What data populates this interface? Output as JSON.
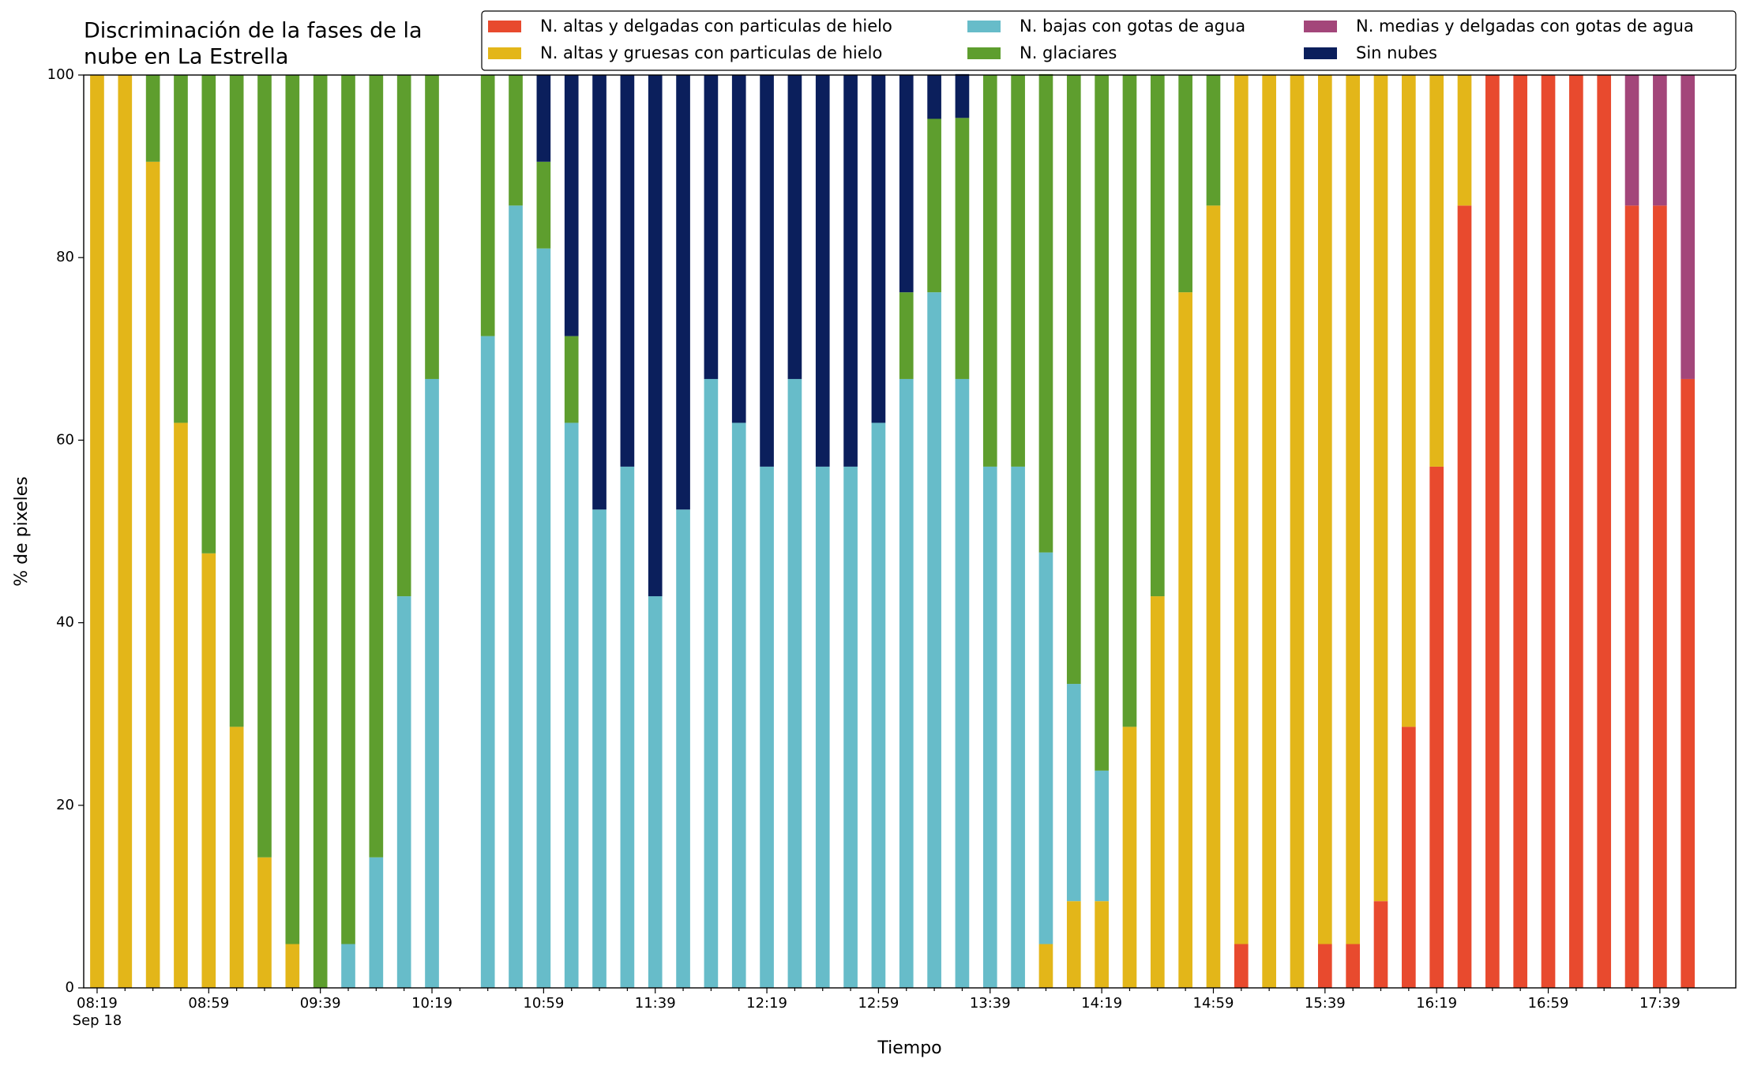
{
  "chart_data": {
    "type": "stacked_bar",
    "title": [
      "Discriminación de la fases de la",
      "nube en La Estrella"
    ],
    "xlabel": "Tiempo",
    "ylabel": "% de pixeles",
    "date_label": "Sep 18",
    "categories": [
      "08:19",
      null,
      null,
      null,
      "08:59",
      null,
      null,
      null,
      "09:39",
      null,
      null,
      null,
      "10:19",
      null,
      null,
      null,
      "10:59",
      null,
      null,
      null,
      "11:39",
      null,
      null,
      null,
      "12:19",
      null,
      null,
      null,
      "12:59",
      null,
      null,
      null,
      "13:39",
      null,
      null,
      null,
      "14:19",
      null,
      null,
      null,
      "14:59",
      null,
      null,
      null,
      "15:39",
      null,
      null,
      null,
      "16:19",
      null,
      null,
      null,
      "16:59",
      null,
      null,
      null,
      "17:39",
      null
    ],
    "series": [
      {
        "name": "N. altas y delgadas con particulas de hielo",
        "color": "#e84a2e",
        "values": [
          0,
          0,
          0,
          0,
          0,
          0,
          0,
          0,
          0,
          0,
          0,
          0,
          0,
          null,
          0,
          0,
          0,
          0,
          0,
          0,
          0,
          0,
          0,
          0,
          0,
          0,
          0,
          0,
          0,
          0,
          0,
          0,
          0,
          0,
          0,
          0,
          0,
          0,
          0,
          0,
          0,
          4.8,
          0,
          0,
          4.8,
          4.8,
          9.5,
          28.6,
          57.1,
          85.7,
          100,
          100,
          100,
          100,
          100,
          85.7,
          85.7,
          66.7
        ]
      },
      {
        "name": "N. altas y gruesas con particulas de hielo",
        "color": "#e3b619",
        "values": [
          100,
          100,
          90.5,
          61.9,
          47.6,
          28.6,
          14.3,
          4.8,
          0,
          0,
          0,
          0,
          0,
          null,
          0,
          0,
          0,
          0,
          0,
          0,
          0,
          0,
          0,
          0,
          0,
          0,
          0,
          0,
          0,
          0,
          0,
          0,
          0,
          0,
          4.8,
          9.5,
          9.5,
          28.6,
          42.9,
          76.2,
          85.7,
          95.2,
          100,
          100,
          95.2,
          95.2,
          90.5,
          71.4,
          42.9,
          14.3,
          0,
          0,
          0,
          0,
          0,
          0,
          0,
          0
        ]
      },
      {
        "name": "N. bajas con gotas de agua",
        "color": "#67bcc9",
        "values": [
          0,
          0,
          0,
          0,
          0,
          0,
          0,
          0,
          0,
          4.8,
          14.3,
          42.9,
          66.7,
          null,
          71.4,
          85.7,
          81,
          61.9,
          52.4,
          57.1,
          42.9,
          52.4,
          66.7,
          61.9,
          57.1,
          66.7,
          57.1,
          57.1,
          61.9,
          66.7,
          76.2,
          66.7,
          57.1,
          57.1,
          42.9,
          23.8,
          14.3,
          0,
          0,
          0,
          0,
          0,
          0,
          0,
          0,
          0,
          0,
          0,
          0,
          0,
          0,
          0,
          0,
          0,
          0,
          0,
          0,
          0
        ]
      },
      {
        "name": "N. glaciares",
        "color": "#5e9e2e",
        "values": [
          0,
          0,
          9.5,
          38.1,
          52.4,
          71.4,
          85.7,
          95.2,
          100,
          95.2,
          85.7,
          57.1,
          33.3,
          null,
          28.6,
          14.3,
          9.5,
          9.5,
          0,
          0,
          0,
          0,
          0,
          0,
          0,
          0,
          0,
          0,
          0,
          9.5,
          19,
          28.6,
          42.9,
          42.9,
          52.4,
          66.7,
          76.2,
          71.4,
          57.1,
          23.8,
          14.3,
          0,
          0,
          0,
          0,
          0,
          0,
          0,
          0,
          0,
          0,
          0,
          0,
          0,
          0,
          0,
          0,
          0
        ]
      },
      {
        "name": "N. medias y delgadas con gotas de agua",
        "color": "#a3467a",
        "values": [
          0,
          0,
          0,
          0,
          0,
          0,
          0,
          0,
          0,
          0,
          0,
          0,
          0,
          null,
          0,
          0,
          0,
          0,
          0,
          0,
          0,
          0,
          0,
          0,
          0,
          0,
          0,
          0,
          0,
          0,
          0,
          0,
          0,
          0,
          0,
          0,
          0,
          0,
          0,
          0,
          0,
          0,
          0,
          0,
          0,
          0,
          0,
          0,
          0,
          0,
          0,
          0,
          0,
          0,
          0,
          14.3,
          14.3,
          33.3
        ]
      },
      {
        "name": "Sin nubes",
        "color": "#0b1f5c",
        "values": [
          0,
          0,
          0,
          0,
          0,
          0,
          0,
          0,
          0,
          0,
          0,
          0,
          0,
          null,
          0,
          0,
          9.5,
          28.6,
          47.6,
          42.9,
          57.1,
          47.6,
          33.3,
          38.1,
          42.9,
          33.3,
          42.9,
          42.9,
          38.1,
          23.8,
          4.8,
          4.8,
          0,
          0,
          0,
          0,
          0,
          0,
          0,
          0,
          0,
          0,
          0,
          0,
          0,
          0,
          0,
          0,
          0,
          0,
          0,
          0,
          0,
          0,
          0,
          0,
          0,
          0
        ]
      }
    ],
    "ylim": [
      0,
      100
    ],
    "yticks": [
      0,
      20,
      40,
      60,
      80,
      100
    ],
    "grid": false,
    "legend": "upper right"
  }
}
